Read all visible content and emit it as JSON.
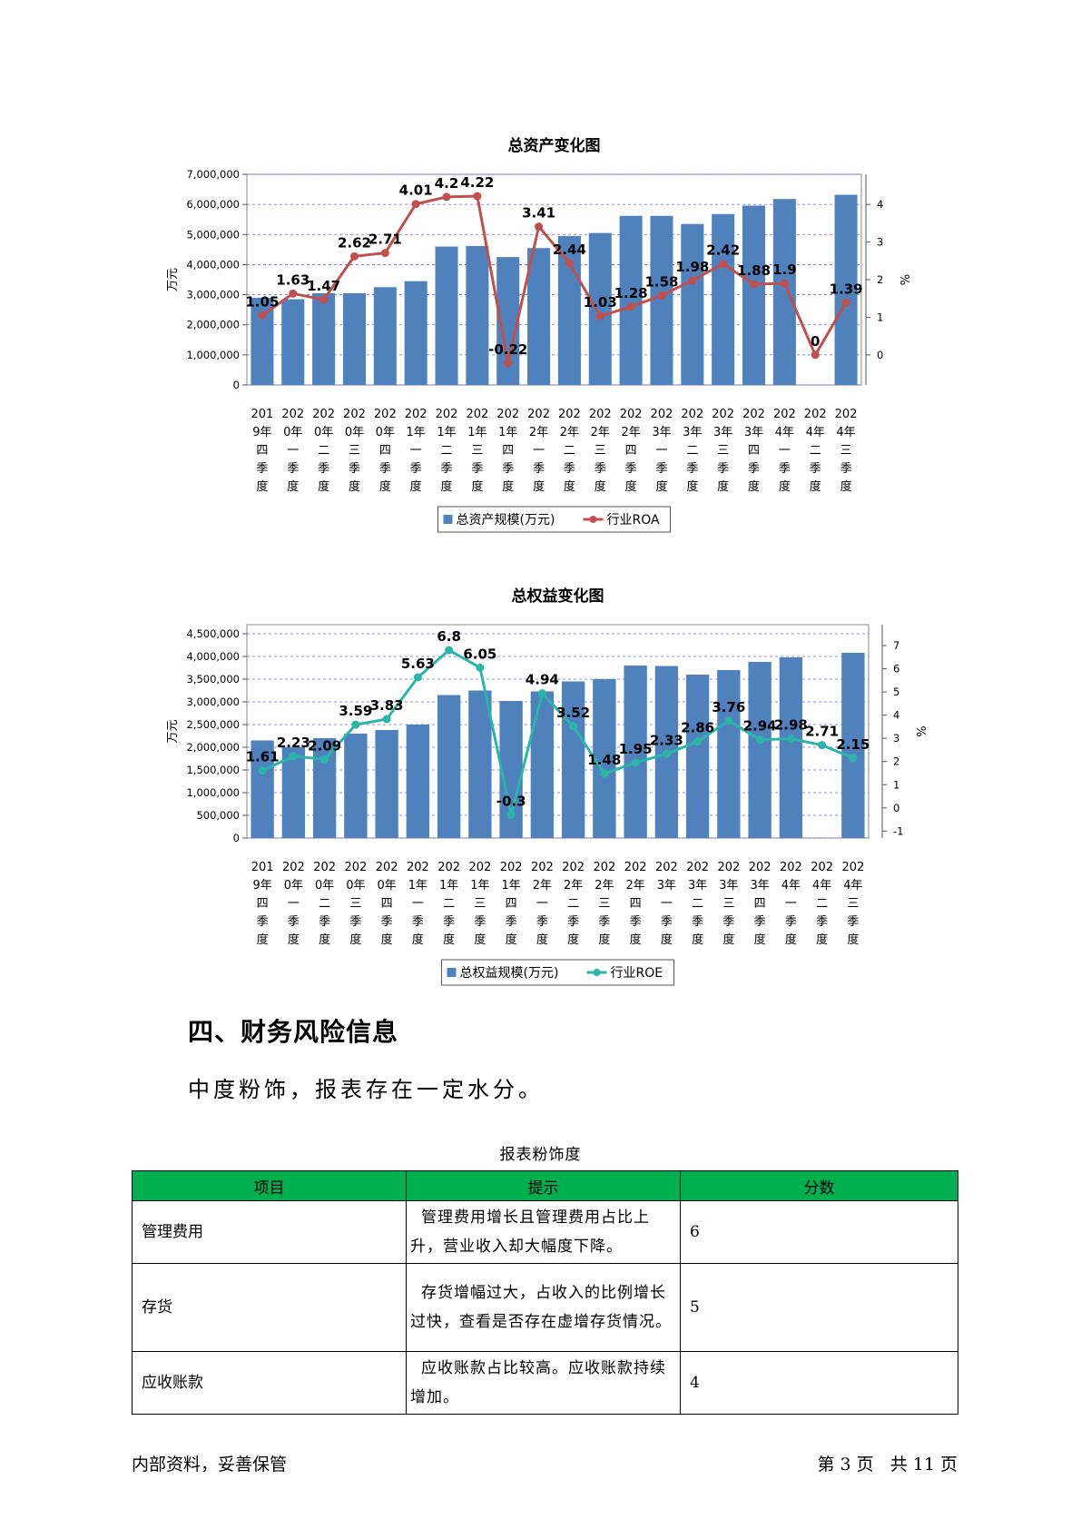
{
  "chart_data": [
    {
      "type": "bar",
      "title": "总资产变化图",
      "ylabel": "万元",
      "y2label": "%",
      "ylim": [
        0,
        7000000
      ],
      "y2lim": [
        -0.8,
        4.8
      ],
      "yticks": [
        "0",
        "1,000,000",
        "2,000,000",
        "3,000,000",
        "4,000,000",
        "5,000,000",
        "6,000,000",
        "7,000,000"
      ],
      "y2ticks": [
        "0",
        "1",
        "2",
        "3",
        "4"
      ],
      "categories": [
        [
          "201",
          "9年",
          "四",
          "季",
          "度"
        ],
        [
          "202",
          "0年",
          "一",
          "季",
          "度"
        ],
        [
          "202",
          "0年",
          "二",
          "季",
          "度"
        ],
        [
          "202",
          "0年",
          "三",
          "季",
          "度"
        ],
        [
          "202",
          "0年",
          "四",
          "季",
          "度"
        ],
        [
          "202",
          "1年",
          "一",
          "季",
          "度"
        ],
        [
          "202",
          "1年",
          "二",
          "季",
          "度"
        ],
        [
          "202",
          "1年",
          "三",
          "季",
          "度"
        ],
        [
          "202",
          "1年",
          "四",
          "季",
          "度"
        ],
        [
          "202",
          "2年",
          "一",
          "季",
          "度"
        ],
        [
          "202",
          "2年",
          "二",
          "季",
          "度"
        ],
        [
          "202",
          "2年",
          "三",
          "季",
          "度"
        ],
        [
          "202",
          "2年",
          "四",
          "季",
          "度"
        ],
        [
          "202",
          "3年",
          "一",
          "季",
          "度"
        ],
        [
          "202",
          "3年",
          "二",
          "季",
          "度"
        ],
        [
          "202",
          "3年",
          "三",
          "季",
          "度"
        ],
        [
          "202",
          "3年",
          "四",
          "季",
          "度"
        ],
        [
          "202",
          "4年",
          "一",
          "季",
          "度"
        ],
        [
          "202",
          "4年",
          "二",
          "季",
          "度"
        ],
        [
          "202",
          "4年",
          "三",
          "季",
          "度"
        ]
      ],
      "series": [
        {
          "name": "总资产规模(万元)",
          "type": "bar",
          "color": "#4f81bd",
          "values": [
            2900000,
            2850000,
            3050000,
            3050000,
            3250000,
            3450000,
            4600000,
            4620000,
            4250000,
            4550000,
            4950000,
            5050000,
            5620000,
            5620000,
            5350000,
            5680000,
            5960000,
            6180000,
            0,
            6320000
          ]
        },
        {
          "name": "行业ROA",
          "type": "line",
          "color": "#c0504d",
          "values": [
            1.05,
            1.63,
            1.47,
            2.62,
            2.71,
            4.01,
            4.2,
            4.22,
            -0.22,
            3.41,
            2.44,
            1.03,
            1.28,
            1.58,
            1.98,
            2.42,
            1.88,
            1.9,
            0,
            1.39
          ],
          "labels": [
            "1.05",
            "1.63",
            "1.47",
            "2.62",
            "2.71",
            "4.01",
            "4.2",
            "4.22",
            "-0.22",
            "3.41",
            "2.44",
            "1.03",
            "1.28",
            "1.58",
            "1.98",
            "2.42",
            "1.88",
            "1.9",
            "0",
            "1.39"
          ]
        }
      ],
      "legend": "bottom-center",
      "grid": true
    },
    {
      "type": "bar",
      "title": "总权益变化图",
      "ylabel": "万元",
      "y2label": "%",
      "ylim": [
        0,
        4700000
      ],
      "y2lim": [
        -1.3,
        7.9
      ],
      "yticks": [
        "0",
        "500,000",
        "1,000,000",
        "1,500,000",
        "2,000,000",
        "2,500,000",
        "3,000,000",
        "3,500,000",
        "4,000,000",
        "4,500,000"
      ],
      "y2ticks": [
        "-1",
        "0",
        "1",
        "2",
        "3",
        "4",
        "5",
        "6",
        "7"
      ],
      "categories": [
        [
          "201",
          "9年",
          "四",
          "季",
          "度"
        ],
        [
          "202",
          "0年",
          "一",
          "季",
          "度"
        ],
        [
          "202",
          "0年",
          "二",
          "季",
          "度"
        ],
        [
          "202",
          "0年",
          "三",
          "季",
          "度"
        ],
        [
          "202",
          "0年",
          "四",
          "季",
          "度"
        ],
        [
          "202",
          "1年",
          "一",
          "季",
          "度"
        ],
        [
          "202",
          "1年",
          "二",
          "季",
          "度"
        ],
        [
          "202",
          "1年",
          "三",
          "季",
          "度"
        ],
        [
          "202",
          "1年",
          "四",
          "季",
          "度"
        ],
        [
          "202",
          "2年",
          "一",
          "季",
          "度"
        ],
        [
          "202",
          "2年",
          "二",
          "季",
          "度"
        ],
        [
          "202",
          "2年",
          "三",
          "季",
          "度"
        ],
        [
          "202",
          "2年",
          "四",
          "季",
          "度"
        ],
        [
          "202",
          "3年",
          "一",
          "季",
          "度"
        ],
        [
          "202",
          "3年",
          "二",
          "季",
          "度"
        ],
        [
          "202",
          "3年",
          "三",
          "季",
          "度"
        ],
        [
          "202",
          "3年",
          "四",
          "季",
          "度"
        ],
        [
          "202",
          "4年",
          "一",
          "季",
          "度"
        ],
        [
          "202",
          "4年",
          "二",
          "季",
          "度"
        ],
        [
          "202",
          "4年",
          "三",
          "季",
          "度"
        ]
      ],
      "series": [
        {
          "name": "总权益规模(万元)",
          "type": "bar",
          "color": "#4f81bd",
          "values": [
            2150000,
            2000000,
            2200000,
            2300000,
            2380000,
            2500000,
            3150000,
            3250000,
            3020000,
            3230000,
            3450000,
            3500000,
            3800000,
            3790000,
            3600000,
            3700000,
            3880000,
            3980000,
            0,
            4080000
          ]
        },
        {
          "name": "行业ROE",
          "type": "line",
          "color": "#2bb5a9",
          "values": [
            1.61,
            2.23,
            2.09,
            3.59,
            3.83,
            5.63,
            6.8,
            6.05,
            -0.3,
            4.94,
            3.52,
            1.48,
            1.95,
            2.33,
            2.86,
            3.76,
            2.94,
            2.98,
            2.71,
            2.15
          ],
          "labels": [
            "1.61",
            "2.23",
            "2.09",
            "3.59",
            "3.83",
            "5.63",
            "6.8",
            "6.05",
            "-0.3",
            "4.94",
            "3.52",
            "1.48",
            "1.95",
            "2.33",
            "2.86",
            "3.76",
            "2.94",
            "2.98",
            "2.71",
            "2.15"
          ]
        }
      ],
      "legend": "bottom-center",
      "grid": true
    }
  ],
  "section": {
    "heading": "四、财务风险信息",
    "text": "中度粉饰，报表存在一定水分。"
  },
  "table": {
    "caption": "报表粉饰度",
    "headers": [
      "项目",
      "提示",
      "分数"
    ],
    "header_color": "#00b050",
    "rows": [
      {
        "item": "管理费用",
        "tip": "管理费用增长且管理费用占比上升，营业收入却大幅度下降。",
        "score": "6"
      },
      {
        "item": "存货",
        "tip": "存货增幅过大，占收入的比例增长过快，查看是否存在虚增存货情况。",
        "score": "5"
      },
      {
        "item": "应收账款",
        "tip": "应收账款占比较高。应收账款持续增加。",
        "score": "4"
      }
    ]
  },
  "footer": {
    "left": "内部资料，妥善保管",
    "right": "第 3 页   共 11 页"
  }
}
